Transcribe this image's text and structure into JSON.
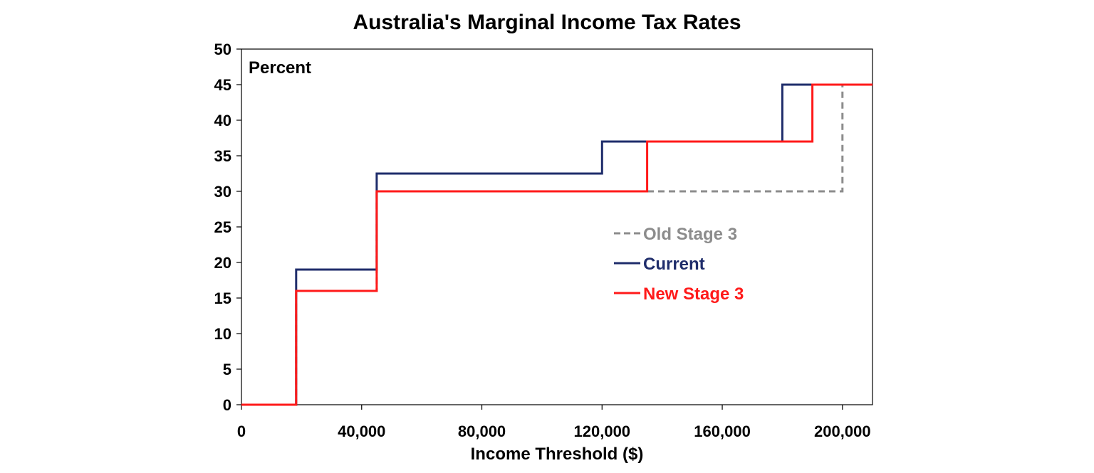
{
  "chart_data": {
    "type": "line",
    "title": "Australia's Marginal Income Tax Rates",
    "xlabel": "Income Threshold ($)",
    "ylabel": "Percent",
    "xlim": [
      0,
      210000
    ],
    "ylim": [
      0,
      50
    ],
    "x_ticks": [
      0,
      40000,
      80000,
      120000,
      160000,
      200000
    ],
    "x_tick_labels": [
      "0",
      "40,000",
      "80,000",
      "120,000",
      "160,000",
      "200,000"
    ],
    "y_ticks": [
      0,
      5,
      10,
      15,
      20,
      25,
      30,
      35,
      40,
      45,
      50
    ],
    "y_tick_labels": [
      "0",
      "5",
      "10",
      "15",
      "20",
      "25",
      "30",
      "35",
      "40",
      "45",
      "50"
    ],
    "grid": false,
    "legend_position": "center-right",
    "series": [
      {
        "name": "Old Stage 3",
        "color": "#8c8c8c",
        "style": "dashed",
        "step_points": [
          [
            0,
            0
          ],
          [
            18200,
            0
          ],
          [
            18200,
            16
          ],
          [
            45000,
            16
          ],
          [
            45000,
            30
          ],
          [
            200000,
            30
          ],
          [
            200000,
            45
          ],
          [
            210000,
            45
          ]
        ]
      },
      {
        "name": "Current",
        "color": "#1f2d6b",
        "style": "solid",
        "step_points": [
          [
            0,
            0
          ],
          [
            18200,
            0
          ],
          [
            18200,
            19
          ],
          [
            45000,
            19
          ],
          [
            45000,
            32.5
          ],
          [
            120000,
            32.5
          ],
          [
            120000,
            37
          ],
          [
            180000,
            37
          ],
          [
            180000,
            45
          ],
          [
            210000,
            45
          ]
        ]
      },
      {
        "name": "New Stage 3",
        "color": "#ff1a1a",
        "style": "solid",
        "step_points": [
          [
            0,
            0
          ],
          [
            18200,
            0
          ],
          [
            18200,
            16
          ],
          [
            45000,
            16
          ],
          [
            45000,
            30
          ],
          [
            135000,
            30
          ],
          [
            135000,
            37
          ],
          [
            190000,
            37
          ],
          [
            190000,
            45
          ],
          [
            210000,
            45
          ]
        ]
      }
    ]
  }
}
